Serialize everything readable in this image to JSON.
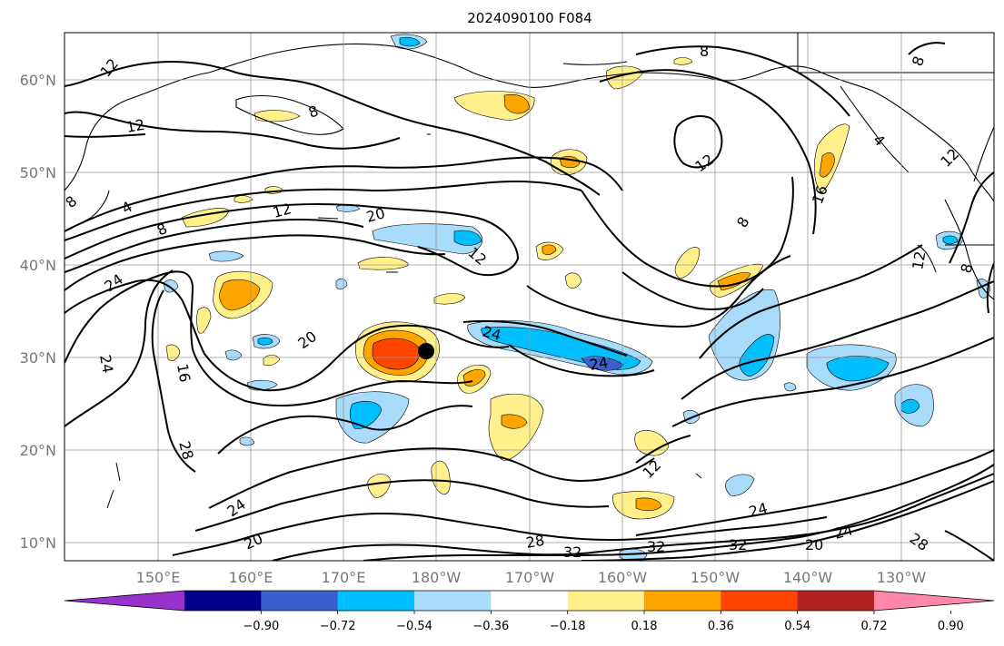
{
  "title": "2024090100 F084",
  "map": {
    "lat_labels": [
      "60°N",
      "50°N",
      "40°N",
      "30°N",
      "20°N",
      "10°N"
    ],
    "lon_labels": [
      "150°E",
      "160°E",
      "170°E",
      "180°W",
      "170°W",
      "160°W",
      "150°W",
      "140°W",
      "130°W"
    ],
    "contour_labels": [
      "12",
      "12",
      "8",
      "8",
      "8",
      "12",
      "12",
      "8",
      "4",
      "12",
      "16",
      "20",
      "8",
      "12",
      "4",
      "8",
      "24",
      "24",
      "20",
      "16",
      "24",
      "28",
      "24",
      "12",
      "24",
      "20",
      "28",
      "32",
      "32",
      "32",
      "24",
      "20",
      "24",
      "28",
      "8",
      "12",
      "12"
    ],
    "marker": "storm-center-dot",
    "colors": {
      "positive": [
        "#fff08c",
        "#ffa500",
        "#ff4500",
        "#b22222",
        "#ff88aa"
      ],
      "negative": [
        "#a9dbfa",
        "#00bfff",
        "#3c5fcd",
        "#00008b",
        "#9932cc"
      ],
      "contour": "#000000",
      "coast": "#000000",
      "grid": "#999999"
    }
  },
  "colorbar": {
    "ticks": [
      "−0.90",
      "−0.72",
      "−0.54",
      "−0.36",
      "−0.18",
      "0.18",
      "0.36",
      "0.54",
      "0.72",
      "0.90"
    ],
    "colors": [
      "#9932cc",
      "#00008b",
      "#3c5fcd",
      "#00bfff",
      "#a9dbfa",
      "#ffffff",
      "#fff08c",
      "#ffa500",
      "#ff4500",
      "#b22222",
      "#ff88aa"
    ]
  }
}
